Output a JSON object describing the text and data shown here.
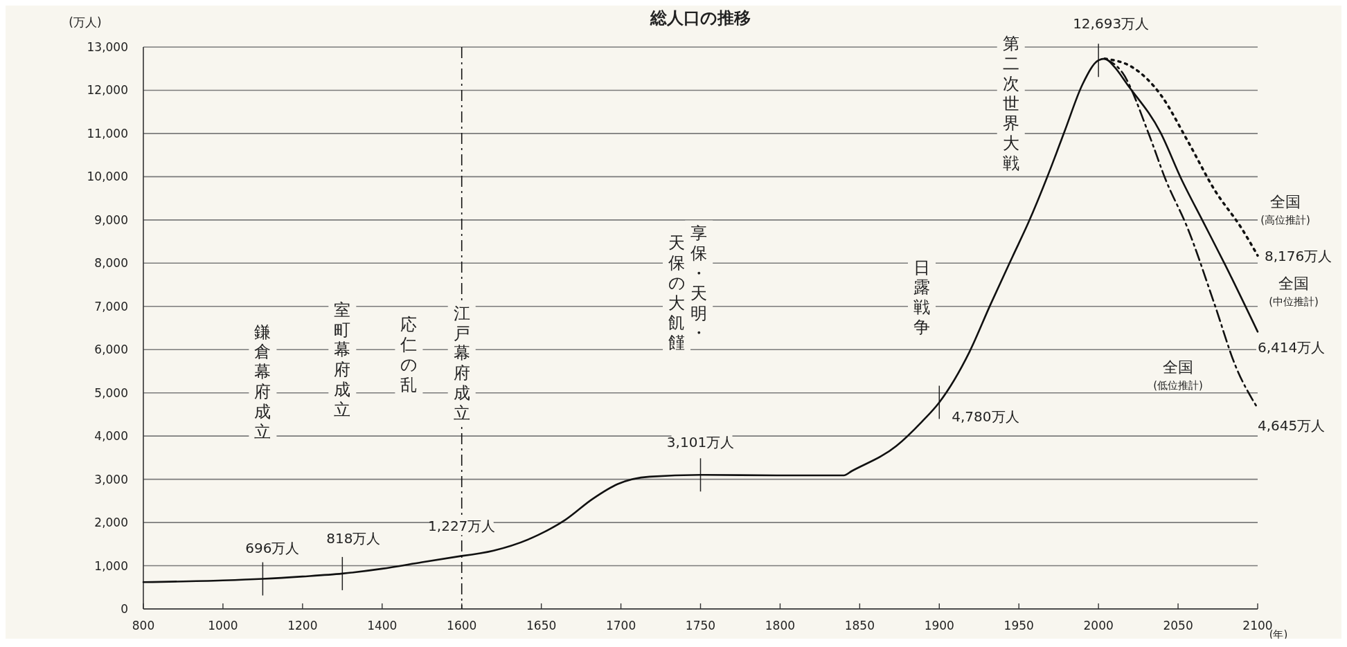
{
  "chart_data": [
    {
      "type": "line",
      "ylabel": "(万人)",
      "xlim": [
        800,
        1600
      ],
      "xticks": [
        800,
        1000,
        1200,
        1400
      ],
      "ylim": [
        0,
        13000
      ],
      "yticks": [
        {
          "value": 0,
          "label": "0"
        },
        {
          "value": 1000,
          "label": "1,000"
        },
        {
          "value": 2000,
          "label": "2,000"
        },
        {
          "value": 3000,
          "label": "3,000"
        },
        {
          "value": 4000,
          "label": "4,000"
        },
        {
          "value": 5000,
          "label": "5,000"
        },
        {
          "value": 6000,
          "label": "6,000"
        },
        {
          "value": 7000,
          "label": "7,000"
        },
        {
          "value": 8000,
          "label": "8,000"
        },
        {
          "value": 9000,
          "label": "9,000"
        },
        {
          "value": 10000,
          "label": "10,000"
        },
        {
          "value": 11000,
          "label": "11,000"
        },
        {
          "value": 12000,
          "label": "12,000"
        },
        {
          "value": 13000,
          "label": "13,000"
        }
      ],
      "grid": "y",
      "legend": false,
      "marker": "none",
      "series": [
        {
          "color": "#111111",
          "line_style": "solid",
          "x": [
            800,
            1000,
            1100,
            1200,
            1300,
            1400,
            1500,
            1600
          ],
          "values": [
            620,
            660,
            696,
            750,
            818,
            930,
            1080,
            1227
          ]
        }
      ],
      "annotations": [
        {
          "text": "696万人",
          "x": 1100,
          "y": 696
        },
        {
          "text": "818万人",
          "x": 1300,
          "y": 818
        },
        "鎌倉幕府成立",
        "室町幕府成立",
        "応仁の乱"
      ]
    },
    {
      "type": "line",
      "title": "総人口の推移",
      "xlabel": "(年)",
      "tick_labels": "x",
      "xlim": [
        1600,
        2100
      ],
      "xticks": [
        1600,
        1650,
        1700,
        1750,
        1800,
        1850,
        1900,
        1950,
        2000,
        2050,
        2100
      ],
      "ylim": [
        0,
        13000
      ],
      "yticks": [
        0,
        1000,
        2000,
        3000,
        4000,
        5000,
        6000,
        7000,
        8000,
        9000,
        10000,
        11000,
        12000,
        13000
      ],
      "grid": "y",
      "legend": false,
      "marker": "none",
      "series": [
        {
          "name": "全国 (中位推計)",
          "color": "#111111",
          "line_style": "solid",
          "x": [
            1600,
            1620,
            1648,
            1665,
            1682,
            1698,
            1718,
            1750,
            1800,
            1840,
            1845,
            1873,
            1889,
            1900,
            1919,
            1932,
            1946,
            1956,
            1970,
            1979,
            1990,
            2000,
            2004,
            2010,
            2018,
            2039,
            2052,
            2066,
            2080,
            2100
          ],
          "values": [
            1227,
            1350,
            1710,
            2060,
            2540,
            2890,
            3060,
            3101,
            3090,
            3090,
            3190,
            3770,
            4330,
            4780,
            5950,
            7030,
            8150,
            8940,
            10200,
            11080,
            12140,
            12693,
            12730,
            12540,
            12140,
            11020,
            9950,
            8940,
            7930,
            6414
          ]
        },
        {
          "name": "全国 (高位推計)",
          "color": "#111111",
          "line_style": "dotted",
          "x": [
            2004,
            2021,
            2039,
            2056,
            2073,
            2090,
            2100
          ],
          "values": [
            12730,
            12540,
            11900,
            10830,
            9690,
            8800,
            8176
          ]
        },
        {
          "name": "全国 (低位推計)",
          "color": "#111111",
          "line_style": "dashed",
          "x": [
            2004,
            2015,
            2032,
            2042,
            2056,
            2073,
            2086,
            2100
          ],
          "values": [
            12730,
            12410,
            10950,
            9950,
            8810,
            7040,
            5630,
            4645
          ]
        }
      ],
      "ref_lines": [
        {
          "axis": "x",
          "value": 1600,
          "label": "江戸幕府成立",
          "line_style": "dashed",
          "color": "#111111"
        }
      ],
      "annotations": [
        {
          "text": "1,227万人",
          "x": 1600,
          "y": 1227
        },
        {
          "text": "3,101万人",
          "x": 1750,
          "y": 3101
        },
        {
          "text": "4,780万人",
          "x": 1900,
          "y": 4780
        },
        {
          "text": "12,693万人",
          "x": 2000,
          "y": 12693
        },
        {
          "text": "8,176万人",
          "x": 2100,
          "y": 8176
        },
        {
          "text": "6,414万人",
          "x": 2100,
          "y": 6414
        },
        {
          "text": "4,645万人",
          "x": 2100,
          "y": 4645
        },
        "享保・天明・",
        "天保の大飢饉",
        "日露戦争",
        "第二次世界大戦"
      ]
    }
  ]
}
